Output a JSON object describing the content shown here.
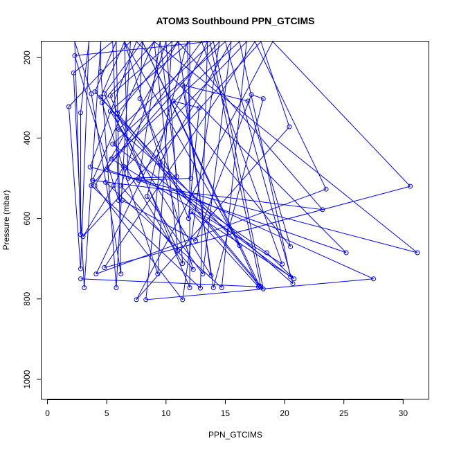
{
  "chart_data": {
    "type": "line",
    "title": "ATOM3 Southbound PPN_GTCIMS",
    "xlabel": "PPN_GTCIMS",
    "ylabel": "Pressure (mbar)",
    "xlim": [
      -0.5,
      32.2
    ],
    "ylim": [
      1050,
      160
    ],
    "y_reversed": true,
    "x_ticks": [
      0,
      5,
      10,
      15,
      20,
      25,
      30
    ],
    "y_ticks": [
      200,
      400,
      600,
      800,
      1000
    ],
    "x_tick_labels": [
      "0",
      "5",
      "10",
      "15",
      "20",
      "25",
      "30"
    ],
    "y_tick_labels": [
      "200",
      "400",
      "600",
      "800",
      "1000"
    ],
    "grid": false,
    "series": [
      {
        "color": "#0000ff",
        "marker": "open-circle",
        "points": [
          [
            2.8,
            750
          ],
          [
            18.0,
            770
          ],
          [
            13.7,
            160
          ],
          [
            2.3,
            195
          ],
          [
            6.0,
            555
          ],
          [
            5.5,
            160
          ],
          [
            2.2,
            238
          ],
          [
            3.1,
            772
          ],
          [
            4.5,
            160
          ],
          [
            4.5,
            235
          ],
          [
            5.8,
            772
          ],
          [
            7.0,
            160
          ],
          [
            1.8,
            322
          ],
          [
            2.8,
            725
          ],
          [
            3.5,
            160
          ],
          [
            2.8,
            337
          ],
          [
            2.8,
            640
          ],
          [
            2.3,
            160
          ],
          [
            3.7,
            290
          ],
          [
            6.2,
            738
          ],
          [
            5.8,
            160
          ],
          [
            4.0,
            285
          ],
          [
            16.2,
            667
          ],
          [
            6.5,
            160
          ],
          [
            4.5,
            298
          ],
          [
            17.9,
            768
          ],
          [
            8.0,
            160
          ],
          [
            4.8,
            290
          ],
          [
            11.0,
            680
          ],
          [
            9.0,
            160
          ],
          [
            4.6,
            312
          ],
          [
            9.3,
            738
          ],
          [
            10.5,
            160
          ],
          [
            5.3,
            295
          ],
          [
            12.0,
            772
          ],
          [
            12.0,
            160
          ],
          [
            5.3,
            333
          ],
          [
            13.8,
            742
          ],
          [
            11.0,
            160
          ],
          [
            5.9,
            338
          ],
          [
            18.2,
            775
          ],
          [
            14.0,
            160
          ],
          [
            6.0,
            378
          ],
          [
            20.7,
            762
          ],
          [
            15.0,
            160
          ],
          [
            5.5,
            415
          ],
          [
            20.5,
            745
          ],
          [
            16.2,
            160
          ],
          [
            5.4,
            452
          ],
          [
            19.8,
            713
          ],
          [
            13.0,
            160
          ],
          [
            5.0,
            478
          ],
          [
            25.2,
            685
          ],
          [
            7.5,
            160
          ],
          [
            3.6,
            472
          ],
          [
            31.2,
            685
          ],
          [
            9.0,
            160
          ],
          [
            3.8,
            505
          ],
          [
            23.2,
            578
          ],
          [
            11.0,
            160
          ],
          [
            4.0,
            519
          ],
          [
            11.4,
            802
          ],
          [
            14.5,
            160
          ],
          [
            3.7,
            518
          ],
          [
            12.9,
            773
          ],
          [
            13.5,
            160
          ],
          [
            4.1,
            738
          ],
          [
            23.5,
            527
          ],
          [
            17.5,
            160
          ],
          [
            4.8,
            722
          ],
          [
            30.6,
            520
          ],
          [
            19.0,
            160
          ],
          [
            7.5,
            802
          ],
          [
            20.4,
            372
          ],
          [
            18.0,
            160
          ],
          [
            3.0,
            645
          ],
          [
            5.6,
            518
          ],
          [
            6.4,
            470
          ]
        ]
      },
      {
        "color": "#0000ff",
        "marker": "open-circle",
        "points": [
          [
            4.9,
            510
          ],
          [
            14.7,
            772
          ],
          [
            16.8,
            160
          ],
          [
            6.6,
            473
          ],
          [
            11.4,
            712
          ],
          [
            10.0,
            160
          ],
          [
            6.2,
            519
          ],
          [
            12.3,
            727
          ],
          [
            6.5,
            160
          ],
          [
            6.8,
            500
          ],
          [
            10.9,
            496
          ],
          [
            9.5,
            160
          ],
          [
            7.7,
            505
          ],
          [
            12.1,
            500
          ],
          [
            11.8,
            160
          ],
          [
            8.4,
            545
          ],
          [
            13.1,
            738
          ],
          [
            15.5,
            160
          ],
          [
            9.5,
            460
          ],
          [
            8.3,
            802
          ],
          [
            27.5,
            750
          ],
          [
            11.1,
            532
          ],
          [
            18.5,
            685
          ],
          [
            20.8,
            750
          ],
          [
            12.1,
            583
          ],
          [
            17.8,
            770
          ],
          [
            8.0,
            160
          ],
          [
            7.8,
            302
          ],
          [
            11.9,
            600
          ],
          [
            12.8,
            325
          ],
          [
            10.6,
            308
          ],
          [
            20.5,
            670
          ],
          [
            16.9,
            308
          ],
          [
            11.4,
            268
          ],
          [
            14.0,
            772
          ],
          [
            18.2,
            302
          ],
          [
            17.2,
            292
          ],
          [
            12.5,
            655
          ],
          [
            6.3,
            555
          ]
        ]
      }
    ]
  }
}
